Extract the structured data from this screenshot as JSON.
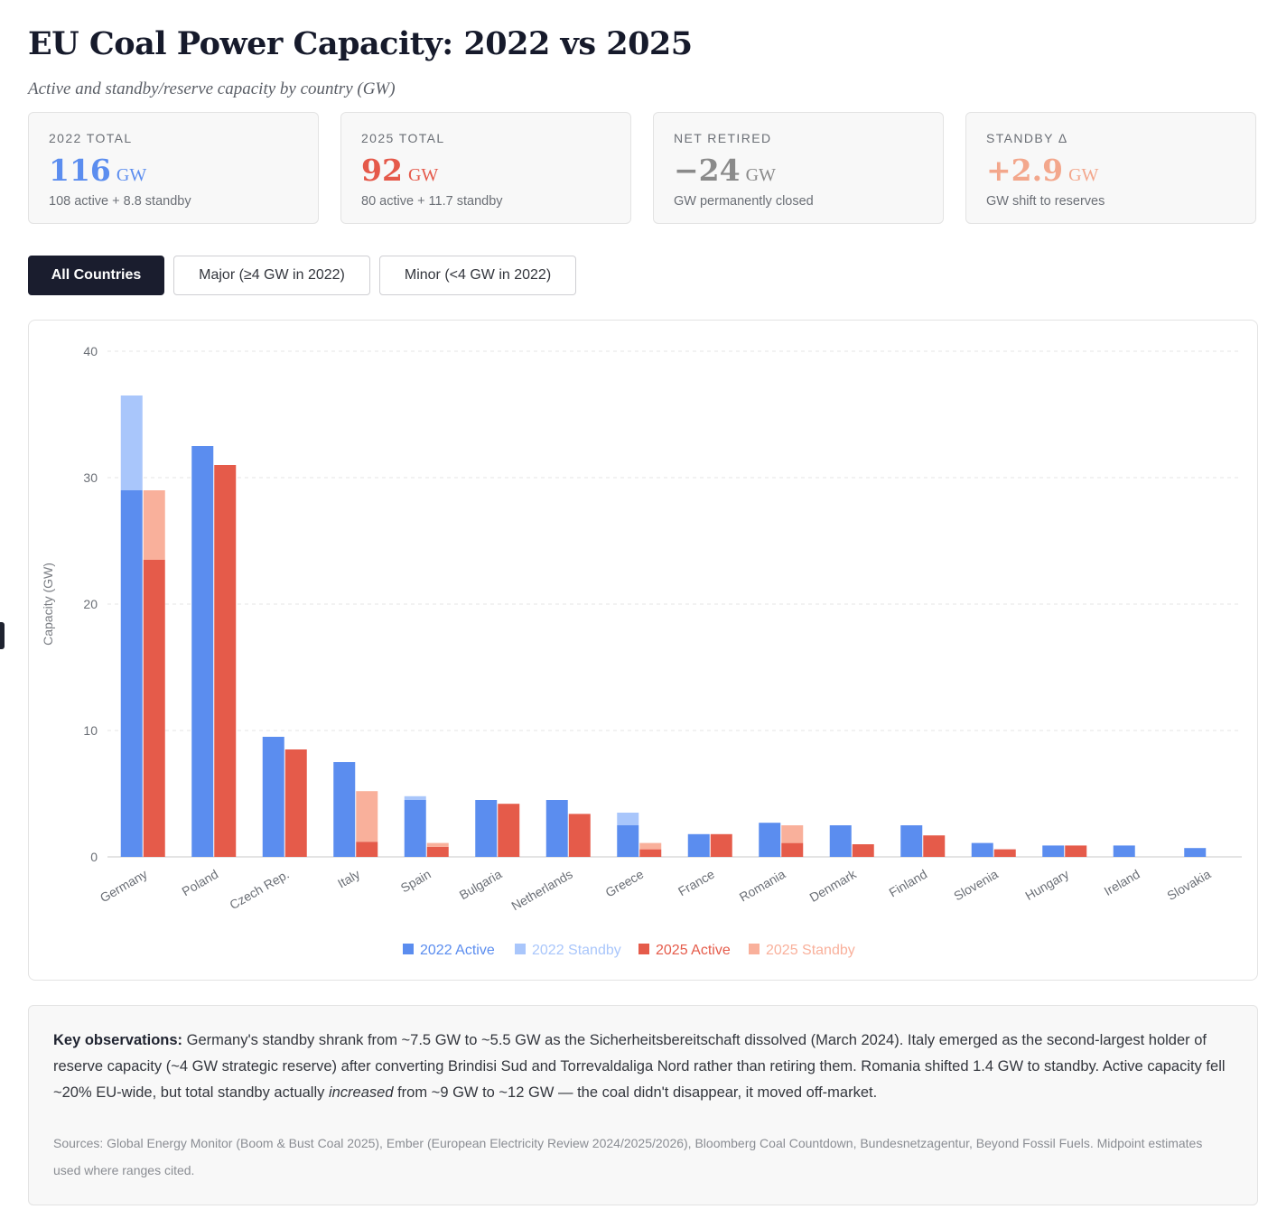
{
  "page": {
    "title": "EU Coal Power Capacity: 2022 vs 2025",
    "subtitle": "Active and standby/reserve capacity by country (GW)"
  },
  "stats": [
    {
      "label": "2022 Total",
      "value": "116",
      "unit": "GW",
      "note": "108 active + 8.8 standby",
      "color": "#5b8def"
    },
    {
      "label": "2025 Total",
      "value": "92",
      "unit": "GW",
      "note": "80 active + 11.7 standby",
      "color": "#e5594a"
    },
    {
      "label": "Net Retired",
      "value": "−24",
      "unit": "GW",
      "note": "GW permanently closed",
      "color": "#8a8a8a"
    },
    {
      "label": "Standby Δ",
      "value": "+2.9",
      "unit": "GW",
      "note": "GW shift to reserves",
      "color": "#f3a78c"
    }
  ],
  "filters": {
    "all": "All Countries",
    "major": "Major (≥4 GW in 2022)",
    "minor": "Minor (<4 GW in 2022)",
    "selected": "all"
  },
  "colors": {
    "active2022": "#5b8def",
    "standby2022": "#a9c6fb",
    "active2025": "#e55b4a",
    "standby2025": "#f9b09b"
  },
  "chart_data": {
    "type": "bar",
    "stacked": true,
    "grouped": true,
    "title": "",
    "xlabel": "",
    "ylabel": "Capacity (GW)",
    "ylim": [
      0,
      40
    ],
    "yticks": [
      0,
      10,
      20,
      30,
      40
    ],
    "grid": true,
    "legend_position": "bottom-center",
    "categories": [
      "Germany",
      "Poland",
      "Czech Rep.",
      "Italy",
      "Spain",
      "Bulgaria",
      "Netherlands",
      "Greece",
      "France",
      "Romania",
      "Denmark",
      "Finland",
      "Slovenia",
      "Hungary",
      "Ireland",
      "Slovakia"
    ],
    "series": [
      {
        "name": "2022 Active",
        "group": "2022",
        "values": [
          29,
          32.5,
          9.5,
          7.5,
          4.5,
          4.5,
          4.5,
          2.5,
          1.8,
          2.7,
          2.5,
          2.5,
          1.1,
          0.9,
          0.9,
          0.7
        ]
      },
      {
        "name": "2022 Standby",
        "group": "2022",
        "values": [
          7.5,
          0,
          0,
          0,
          0.3,
          0,
          0,
          1.0,
          0,
          0,
          0,
          0,
          0,
          0,
          0,
          0
        ]
      },
      {
        "name": "2025 Active",
        "group": "2025",
        "values": [
          23.5,
          31,
          8.5,
          1.2,
          0.8,
          4.2,
          3.4,
          0.6,
          1.8,
          1.1,
          1.0,
          1.7,
          0.6,
          0.9,
          0,
          0
        ]
      },
      {
        "name": "2025 Standby",
        "group": "2025",
        "values": [
          5.5,
          0,
          0,
          4.0,
          0.3,
          0,
          0,
          0.5,
          0,
          1.4,
          0,
          0,
          0,
          0,
          0,
          0
        ]
      }
    ]
  },
  "notes": {
    "heading": "Key observations:",
    "text_1": " Germany's standby shrank from ~7.5 GW to ~5.5 GW as the Sicherheitsbereitschaft dissolved (March 2024). Italy emerged as the second-largest holder of reserve capacity (~4 GW strategic reserve) after converting Brindisi Sud and Torrevaldaliga Nord rather than retiring them. Romania shifted 1.4 GW to standby. Active capacity fell ~20% EU-wide, but total standby actually ",
    "emphasis": "increased",
    "text_2": " from ~9 GW to ~12 GW — the coal didn't disappear, it moved off-market.",
    "sources": "Sources: Global Energy Monitor (Boom & Bust Coal 2025), Ember (European Electricity Review 2024/2025/2026), Bloomberg Coal Countdown, Bundesnetzagentur, Beyond Fossil Fuels. Midpoint estimates used where ranges cited."
  }
}
